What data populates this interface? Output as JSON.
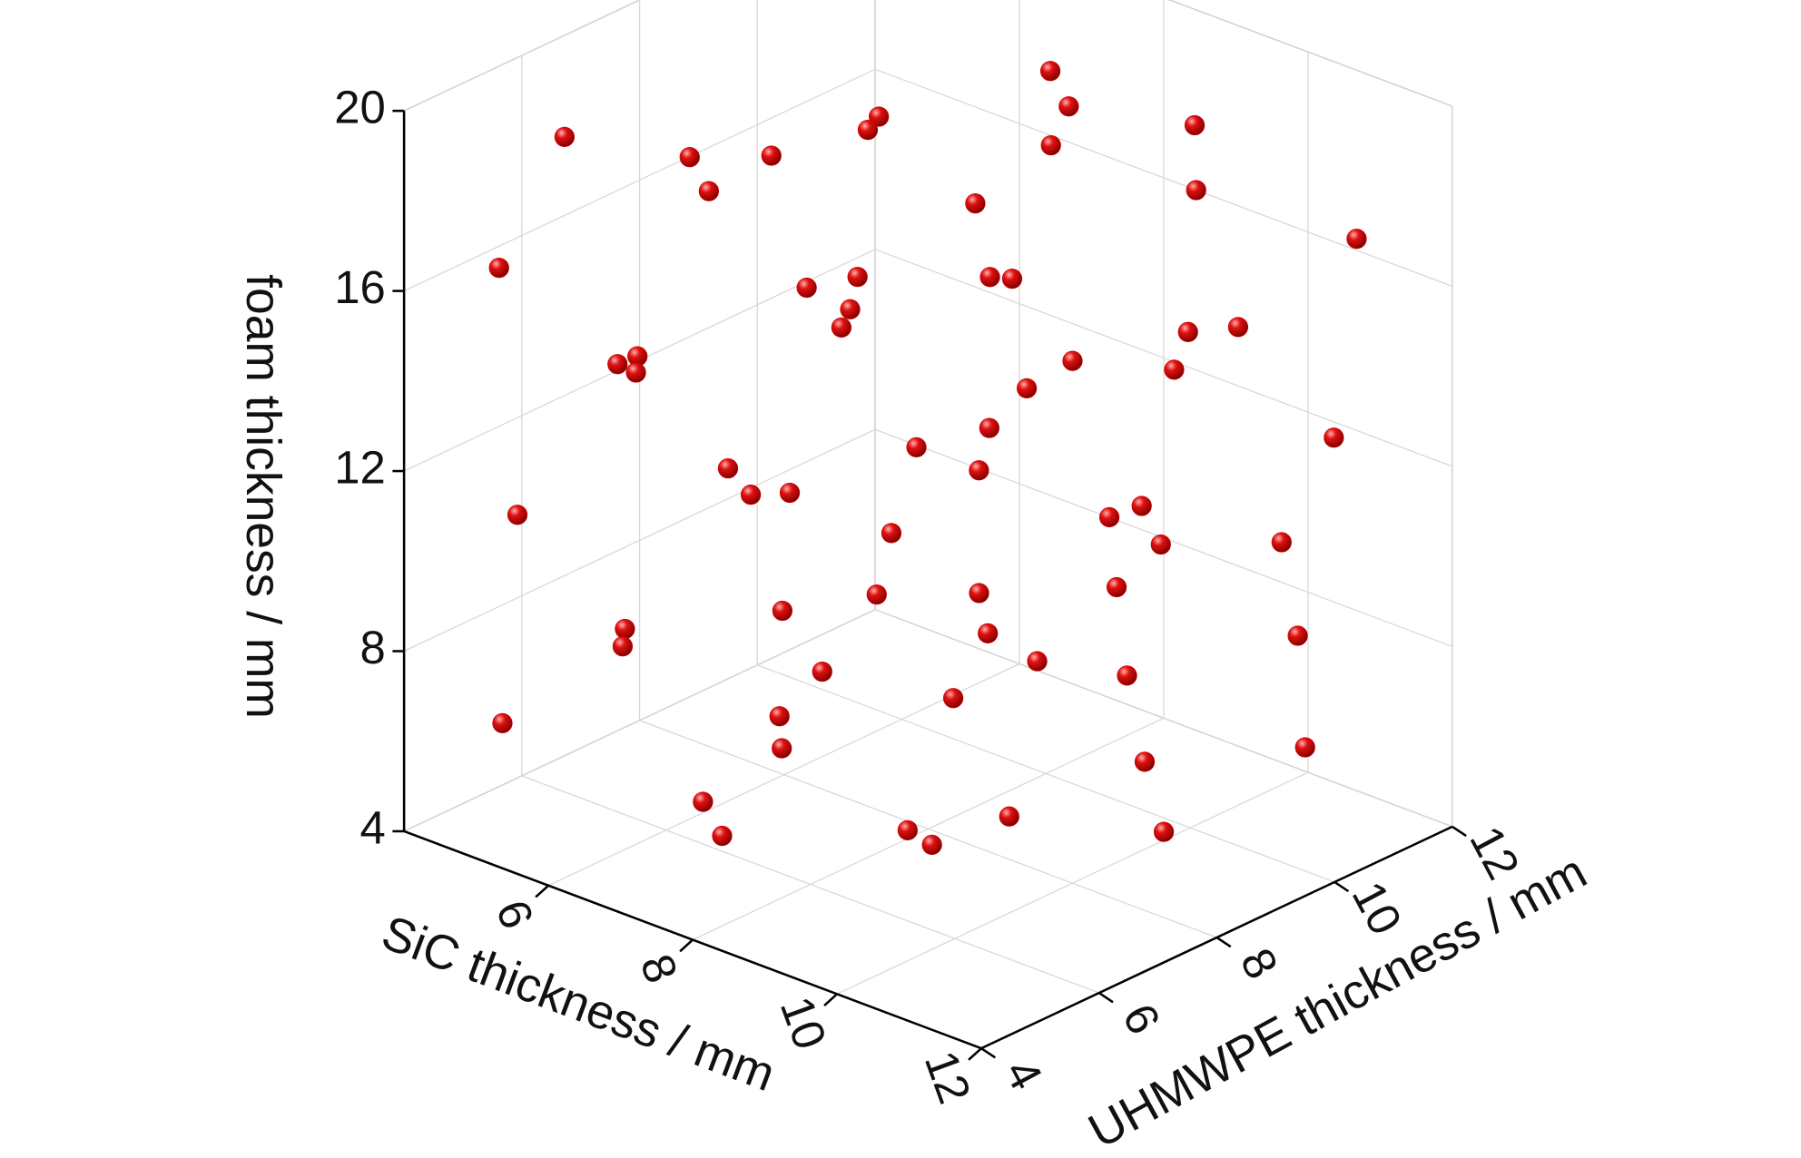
{
  "chart_data": {
    "type": "scatter3d",
    "xlabel": "SiC thickness / mm",
    "ylabel": "UHMWPE thickness / mm",
    "zlabel": "foam thickness / mm",
    "xlim": [
      4,
      12
    ],
    "ylim": [
      4,
      12
    ],
    "zlim": [
      4,
      20
    ],
    "xticks": [
      6,
      8,
      10,
      12
    ],
    "yticks": [
      4,
      6,
      8,
      10,
      12
    ],
    "zticks": [
      4,
      8,
      12,
      16,
      20
    ],
    "grid": true,
    "color": "#d40000",
    "x": [
      7.0,
      7.5,
      6.5,
      7.0,
      5.0,
      6.0,
      5.5,
      7.0,
      6.6,
      9.0,
      10.0,
      8.0,
      11.0,
      4.5,
      8.0,
      5.5,
      6.0,
      9.0,
      7.0,
      9.0,
      10.5,
      8.5,
      6.5,
      5.0,
      5.5,
      10.0,
      11.0,
      7.0,
      8.0,
      9.5,
      11.5,
      8.0,
      6.5,
      6.0,
      7.5,
      5.0,
      9.0,
      11.0,
      7.0,
      10.0,
      12.0,
      8.0,
      9.0,
      10.5,
      5.0,
      6.0,
      4.5,
      8.5,
      11.0,
      10.0,
      8.0,
      11.0,
      9.0,
      7.0,
      5.2,
      8.5,
      12.0,
      11.0,
      7.0,
      11.0,
      8.0,
      10.0,
      12.0,
      10.5
    ],
    "y": [
      11.3,
      11.0,
      9.0,
      8.2,
      5.5,
      6.4,
      8.4,
      5.5,
      11.8,
      11.3,
      10.1,
      8.8,
      11.6,
      5.0,
      6.8,
      9.0,
      11.5,
      8.2,
      7.9,
      5.3,
      10.2,
      11.8,
      4.9,
      6.4,
      6.1,
      8.0,
      8.5,
      10.9,
      7.8,
      7.2,
      10.6,
      4.6,
      10.7,
      8.1,
      5.6,
      4.7,
      10.4,
      7.4,
      8.6,
      9.5,
      9.1,
      11.2,
      5.9,
      5.8,
      9.2,
      5.3,
      7.1,
      8.4,
      10.6,
      7.4,
      6.2,
      7.7,
      7.2,
      6.7,
      4.2,
      4.9,
      9.5,
      8.0,
      5.4,
      5.7,
      4.5,
      5.2,
      7.1,
      5.0
    ],
    "z": [
      18.2,
      17.9,
      18.3,
      18.8,
      19.1,
      18.7,
      17.2,
      19.1,
      16.0,
      18.2,
      18.1,
      17.4,
      16.7,
      16.2,
      17.0,
      13.9,
      12.9,
      16.7,
      15.0,
      17.4,
      15.3,
      13.0,
      15.5,
      13.5,
      13.8,
      15.6,
      15.7,
      11.4,
      12.6,
      14.3,
      13.2,
      14.1,
      9.4,
      10.2,
      12.6,
      11.2,
      10.3,
      13.1,
      9.6,
      10.6,
      12.1,
      7.4,
      11.1,
      12.1,
      6.3,
      8.9,
      6.5,
      8.4,
      8.5,
      9.3,
      8.6,
      9.4,
      8.0,
      6.7,
      7.0,
      8.0,
      7.3,
      7.3,
      5.6,
      7.5,
      6.0,
      6.9,
      6.9,
      7.0
    ]
  }
}
